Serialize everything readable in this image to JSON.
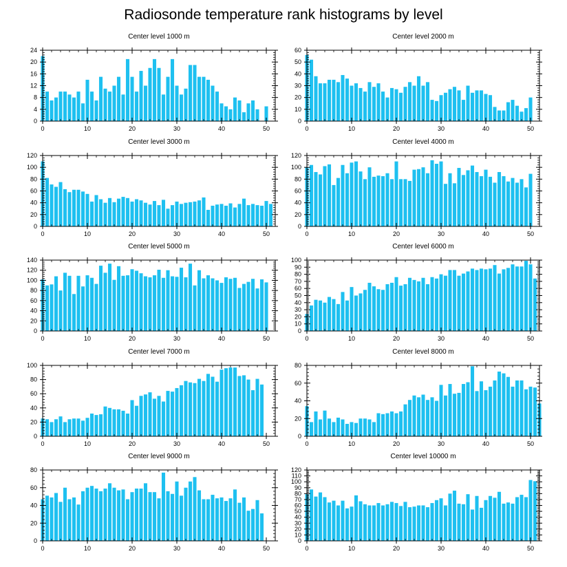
{
  "title": "Radiosonde temperature rank histograms by level",
  "bar_color": "#1ec0f0",
  "chart_data": [
    {
      "type": "bar",
      "title": "Center level 1000 m",
      "ylim": [
        0,
        24
      ],
      "yticks": [
        0,
        4,
        8,
        12,
        16,
        20,
        24
      ],
      "xlim": [
        0,
        52
      ],
      "xticks": [
        0,
        10,
        20,
        30,
        40,
        50
      ],
      "values": [
        22,
        10,
        7,
        8,
        10,
        10,
        9,
        8,
        10,
        6,
        14,
        10,
        7,
        15,
        11,
        10,
        12,
        15,
        9,
        21,
        15,
        10,
        17,
        12,
        18,
        21,
        18,
        9,
        15,
        21,
        12,
        9,
        11,
        19,
        19,
        15,
        15,
        14,
        12,
        10,
        6,
        5,
        4,
        8,
        7,
        3,
        6,
        7,
        4,
        0,
        5
      ]
    },
    {
      "type": "bar",
      "title": "Center level 2000 m",
      "ylim": [
        0,
        60
      ],
      "yticks": [
        0,
        10,
        20,
        30,
        40,
        50,
        60
      ],
      "xlim": [
        0,
        52
      ],
      "xticks": [
        0,
        10,
        20,
        30,
        40,
        50
      ],
      "values": [
        56,
        52,
        38,
        32,
        32,
        35,
        35,
        33,
        39,
        36,
        30,
        32,
        28,
        25,
        33,
        29,
        32,
        25,
        20,
        28,
        27,
        24,
        29,
        33,
        30,
        38,
        30,
        33,
        18,
        17,
        22,
        24,
        27,
        29,
        26,
        18,
        30,
        24,
        26,
        26,
        23,
        22,
        12,
        9,
        9,
        16,
        18,
        13,
        8,
        11,
        20
      ]
    },
    {
      "type": "bar",
      "title": "Center level 3000 m",
      "ylim": [
        0,
        120
      ],
      "yticks": [
        0,
        20,
        40,
        60,
        80,
        100,
        120
      ],
      "xlim": [
        0,
        52
      ],
      "xticks": [
        0,
        10,
        20,
        30,
        40,
        50
      ],
      "values": [
        110,
        82,
        71,
        67,
        75,
        63,
        58,
        62,
        62,
        59,
        55,
        42,
        53,
        46,
        40,
        48,
        41,
        47,
        50,
        48,
        42,
        46,
        44,
        40,
        37,
        43,
        36,
        45,
        30,
        36,
        42,
        38,
        40,
        41,
        42,
        44,
        49,
        28,
        35,
        37,
        38,
        35,
        39,
        32,
        38,
        47,
        36,
        38,
        36,
        35,
        43,
        38
      ]
    },
    {
      "type": "bar",
      "title": "Center level 4000 m",
      "ylim": [
        0,
        120
      ],
      "yticks": [
        0,
        20,
        40,
        60,
        80,
        100,
        120
      ],
      "xlim": [
        0,
        52
      ],
      "xticks": [
        0,
        10,
        20,
        30,
        40,
        50
      ],
      "values": [
        100,
        104,
        92,
        88,
        102,
        105,
        70,
        82,
        104,
        90,
        108,
        110,
        93,
        80,
        100,
        84,
        86,
        85,
        90,
        80,
        110,
        80,
        80,
        77,
        96,
        97,
        100,
        90,
        112,
        106,
        110,
        72,
        90,
        73,
        99,
        87,
        95,
        103,
        92,
        85,
        96,
        84,
        74,
        92,
        85,
        76,
        82,
        74,
        80,
        66,
        89
      ]
    },
    {
      "type": "bar",
      "title": "Center level 5000 m",
      "ylim": [
        0,
        140
      ],
      "yticks": [
        0,
        20,
        40,
        60,
        80,
        100,
        120,
        140
      ],
      "xlim": [
        0,
        52
      ],
      "xticks": [
        0,
        10,
        20,
        30,
        40,
        50
      ],
      "values": [
        102,
        90,
        92,
        108,
        80,
        115,
        109,
        73,
        109,
        88,
        110,
        105,
        93,
        129,
        115,
        133,
        101,
        128,
        109,
        110,
        122,
        119,
        114,
        108,
        106,
        110,
        121,
        105,
        120,
        108,
        107,
        125,
        106,
        133,
        90,
        120,
        104,
        110,
        104,
        100,
        95,
        106,
        103,
        105,
        85,
        93,
        97,
        103,
        84,
        102,
        96
      ]
    },
    {
      "type": "bar",
      "title": "Center level 6000 m",
      "ylim": [
        0,
        100
      ],
      "yticks": [
        0,
        10,
        20,
        30,
        40,
        50,
        60,
        70,
        80,
        90,
        100
      ],
      "xlim": [
        0,
        52
      ],
      "xticks": [
        0,
        10,
        20,
        30,
        40,
        50
      ],
      "values": [
        24,
        36,
        44,
        43,
        40,
        48,
        45,
        38,
        55,
        43,
        62,
        50,
        53,
        58,
        68,
        63,
        59,
        58,
        66,
        68,
        76,
        64,
        66,
        75,
        72,
        70,
        75,
        66,
        76,
        74,
        80,
        78,
        86,
        86,
        78,
        81,
        84,
        88,
        86,
        88,
        87,
        88,
        93,
        81,
        87,
        89,
        94,
        91,
        91,
        99,
        94,
        74
      ]
    },
    {
      "type": "bar",
      "title": "Center level 7000 m",
      "ylim": [
        0,
        100
      ],
      "yticks": [
        0,
        20,
        40,
        60,
        80,
        100
      ],
      "xlim": [
        0,
        52
      ],
      "xticks": [
        0,
        10,
        20,
        30,
        40,
        50
      ],
      "values": [
        25,
        24,
        20,
        24,
        28,
        20,
        24,
        25,
        25,
        22,
        26,
        32,
        30,
        31,
        42,
        40,
        38,
        38,
        36,
        32,
        51,
        43,
        57,
        59,
        62,
        53,
        57,
        49,
        64,
        63,
        68,
        72,
        78,
        76,
        75,
        81,
        78,
        88,
        84,
        77,
        94,
        96,
        97,
        97,
        85,
        86,
        80,
        65,
        81,
        73
      ]
    },
    {
      "type": "bar",
      "title": "Center level 8000 m",
      "ylim": [
        0,
        80
      ],
      "yticks": [
        0,
        20,
        40,
        60,
        80
      ],
      "xlim": [
        0,
        52
      ],
      "xticks": [
        0,
        10,
        20,
        30,
        40,
        50
      ],
      "values": [
        34,
        16,
        28,
        19,
        29,
        20,
        16,
        21,
        19,
        14,
        16,
        15,
        20,
        20,
        19,
        16,
        26,
        25,
        26,
        28,
        26,
        28,
        36,
        41,
        46,
        44,
        47,
        41,
        44,
        40,
        58,
        46,
        59,
        48,
        49,
        59,
        61,
        79,
        51,
        62,
        52,
        56,
        63,
        73,
        71,
        67,
        56,
        63,
        63,
        53,
        56,
        55,
        37
      ]
    },
    {
      "type": "bar",
      "title": "Center level 9000 m",
      "ylim": [
        0,
        80
      ],
      "yticks": [
        0,
        20,
        40,
        60,
        80
      ],
      "xlim": [
        0,
        52
      ],
      "xticks": [
        0,
        10,
        20,
        30,
        40,
        50
      ],
      "values": [
        47,
        51,
        49,
        54,
        44,
        60,
        47,
        49,
        41,
        56,
        60,
        62,
        59,
        56,
        59,
        65,
        60,
        57,
        58,
        47,
        55,
        59,
        59,
        65,
        55,
        55,
        48,
        77,
        56,
        53,
        67,
        51,
        60,
        67,
        72,
        57,
        47,
        47,
        52,
        48,
        49,
        45,
        48,
        58,
        43,
        49,
        34,
        36,
        46,
        31
      ]
    },
    {
      "type": "bar",
      "title": "Center level 10000 m",
      "ylim": [
        0,
        120
      ],
      "yticks": [
        0,
        10,
        20,
        30,
        40,
        50,
        60,
        70,
        80,
        90,
        100,
        110,
        120
      ],
      "xlim": [
        0,
        52
      ],
      "xticks": [
        0,
        10,
        20,
        30,
        40,
        50
      ],
      "values": [
        79,
        87,
        75,
        82,
        74,
        65,
        68,
        60,
        68,
        55,
        58,
        77,
        67,
        62,
        60,
        60,
        64,
        60,
        62,
        66,
        64,
        59,
        66,
        57,
        58,
        60,
        60,
        57,
        64,
        69,
        72,
        60,
        80,
        85,
        63,
        62,
        79,
        53,
        76,
        56,
        69,
        76,
        73,
        83,
        63,
        65,
        63,
        74,
        78,
        74,
        103,
        101
      ]
    }
  ]
}
